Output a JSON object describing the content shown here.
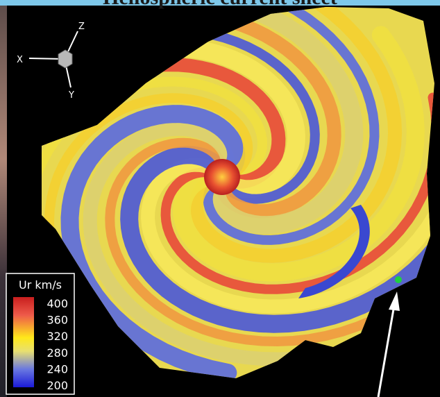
{
  "title": "Heliospheric current sheet",
  "axes_triad": {
    "x": "X",
    "y": "Y",
    "z": "Z"
  },
  "colorbar": {
    "label": "Ur km/s",
    "ticks": [
      400,
      360,
      320,
      280,
      240,
      200
    ]
  }
}
